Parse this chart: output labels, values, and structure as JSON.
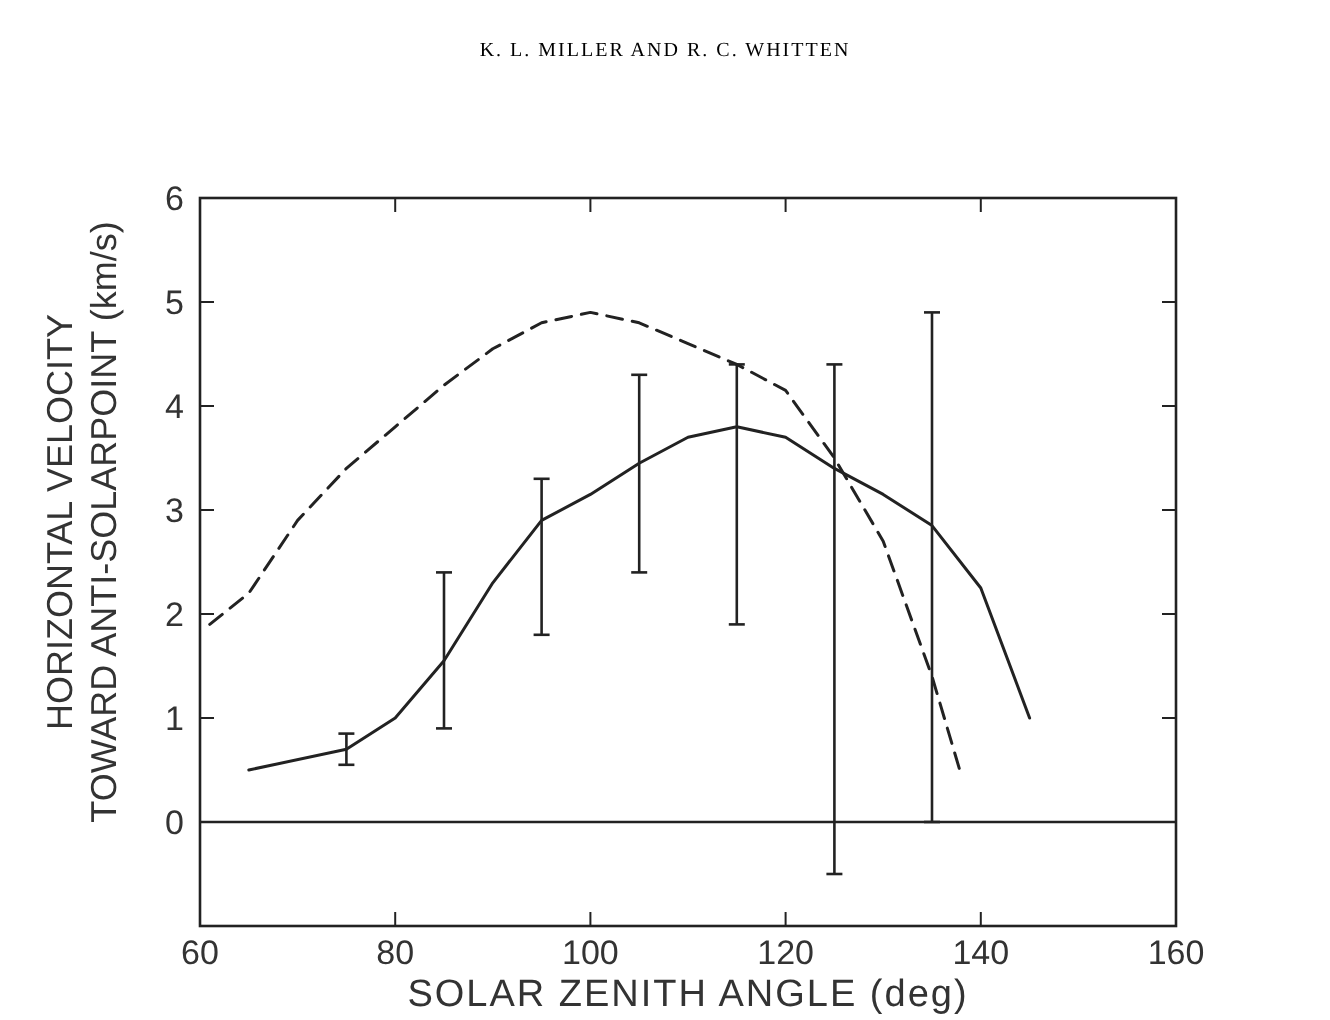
{
  "chart_data": {
    "type": "line",
    "xlabel": "SOLAR ZENITH ANGLE (deg)",
    "ylabel": "HORIZONTAL VELOCITY\nTOWARD ANTI-SOLARPOINT (km/s)",
    "annotations": [
      "K. L. MILLER AND R. C. WHITTEN"
    ],
    "xlim": [
      60,
      160
    ],
    "xticks": [
      60,
      80,
      100,
      120,
      140,
      160
    ],
    "ylim": [
      -1,
      6
    ],
    "yticks": [
      {
        "value": -1,
        "label": null
      },
      0,
      1,
      2,
      3,
      4,
      5,
      6
    ],
    "ref_lines": [
      {
        "axis": "y",
        "value": 0,
        "color": "#222222"
      }
    ],
    "series": [
      {
        "color": "#222222",
        "line_style": "solid",
        "x": [
          65,
          75,
          80,
          85,
          90,
          95,
          100,
          105,
          110,
          115,
          120,
          125,
          130,
          135,
          140,
          145
        ],
        "values": [
          0.5,
          0.7,
          1.0,
          1.55,
          2.3,
          2.9,
          3.15,
          3.45,
          3.7,
          3.8,
          3.7,
          3.4,
          3.15,
          2.85,
          2.25,
          1.0
        ],
        "errors": [
          null,
          [
            0.55,
            0.85
          ],
          null,
          [
            0.9,
            2.4
          ],
          null,
          [
            1.8,
            3.3
          ],
          null,
          [
            2.4,
            4.3
          ],
          null,
          [
            1.9,
            4.4
          ],
          null,
          [
            -0.5,
            4.4
          ],
          null,
          [
            0,
            4.9
          ],
          null,
          null
        ]
      },
      {
        "color": "#222222",
        "line_style": "dashed",
        "x": [
          61,
          65,
          70,
          75,
          80,
          85,
          90,
          95,
          100,
          105,
          110,
          115,
          120,
          125,
          130,
          135,
          138
        ],
        "values": [
          1.9,
          2.2,
          2.9,
          3.4,
          3.8,
          4.2,
          4.55,
          4.8,
          4.9,
          4.8,
          4.6,
          4.4,
          4.15,
          3.5,
          2.7,
          1.4,
          0.45
        ]
      }
    ]
  }
}
